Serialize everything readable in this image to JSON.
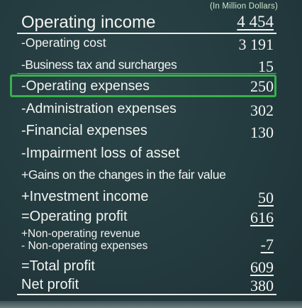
{
  "unit_note": "(In Million Dollars)",
  "rows": [
    {
      "label": "Operating income",
      "value": "4 454"
    },
    {
      "label": "-Operating cost",
      "value": "3 191"
    },
    {
      "label": "-Business tax and surcharges",
      "value": "15"
    },
    {
      "label": "-Operating expenses",
      "value": "250"
    },
    {
      "label": "-Administration expenses",
      "value": "302"
    },
    {
      "label": "-Financial expenses",
      "value": "130"
    },
    {
      "label": "-Impairment loss of asset",
      "value": ""
    },
    {
      "label": "+Gains on the changes in the fair value",
      "value": ""
    },
    {
      "label": "+Investment income",
      "value": "50"
    },
    {
      "label": "=Operating profit",
      "value": "616"
    },
    {
      "label": "+Non-operating revenue",
      "value": ""
    },
    {
      "label": "- Non-operating expenses",
      "value": "-7"
    },
    {
      "label": "=Total profit",
      "value": "609"
    },
    {
      "label": "Net profit",
      "value": "380"
    }
  ],
  "colors": {
    "board": "#23393d",
    "highlight": "#35b24a",
    "unit_text": "#cfe6cf",
    "chalk": "#f2f4f2"
  }
}
